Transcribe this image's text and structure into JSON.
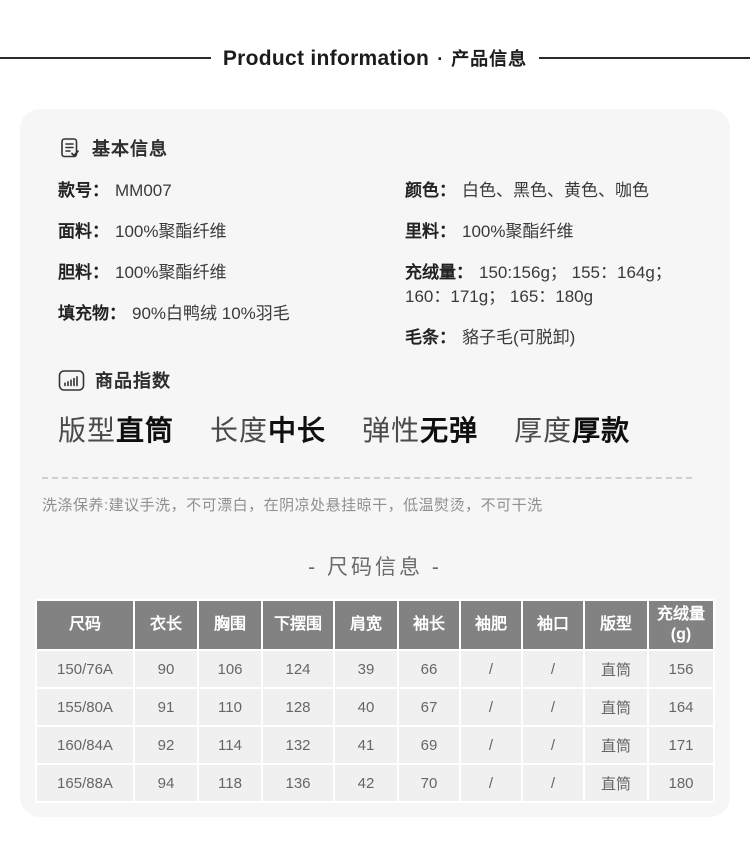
{
  "page_header": {
    "title_en": "Product information",
    "separator": "·",
    "title_zh": "产品信息"
  },
  "basic_info": {
    "section_title": "基本信息",
    "left": [
      {
        "label": "款号：",
        "value": "MM007"
      },
      {
        "label": "面料：",
        "value": "100%聚酯纤维"
      },
      {
        "label": "胆料：",
        "value": "100%聚酯纤维"
      },
      {
        "label": "填充物：",
        "value": "90%白鸭绒 10%羽毛"
      }
    ],
    "right": [
      {
        "label": "颜色：",
        "value": "白色、黑色、黄色、咖色"
      },
      {
        "label": "里料：",
        "value": "100%聚酯纤维"
      },
      {
        "label": "充绒量：",
        "value": "150:156g； 155：164g； 160：171g； 165：180g"
      },
      {
        "label": "毛条：",
        "value": "貉子毛(可脱卸)"
      }
    ]
  },
  "product_index": {
    "section_title": "商品指数",
    "items": [
      {
        "label": "版型",
        "value": "直筒"
      },
      {
        "label": "长度",
        "value": "中长"
      },
      {
        "label": "弹性",
        "value": "无弹"
      },
      {
        "label": "厚度",
        "value": "厚款"
      }
    ],
    "care_note": "洗涤保养:建议手洗，不可漂白，在阴凉处悬挂晾干，低温熨烫，不可干洗"
  },
  "size_info": {
    "section_title": "- 尺码信息 -",
    "columns": [
      "尺码",
      "衣长",
      "胸围",
      "下摆围",
      "肩宽",
      "袖长",
      "袖肥",
      "袖口",
      "版型",
      "充绒量(g)"
    ],
    "rows": [
      [
        "150/76A",
        "90",
        "106",
        "124",
        "39",
        "66",
        "/",
        "/",
        "直筒",
        "156"
      ],
      [
        "155/80A",
        "91",
        "110",
        "128",
        "40",
        "67",
        "/",
        "/",
        "直筒",
        "164"
      ],
      [
        "160/84A",
        "92",
        "114",
        "132",
        "41",
        "69",
        "/",
        "/",
        "直筒",
        "171"
      ],
      [
        "165/88A",
        "94",
        "118",
        "136",
        "42",
        "70",
        "/",
        "/",
        "直筒",
        "180"
      ]
    ]
  },
  "colors": {
    "card_bg": "#f6f6f6",
    "table_header_bg": "#828282",
    "table_row_bg": "#f0f0f0",
    "header_line": "#2a2a2a"
  }
}
